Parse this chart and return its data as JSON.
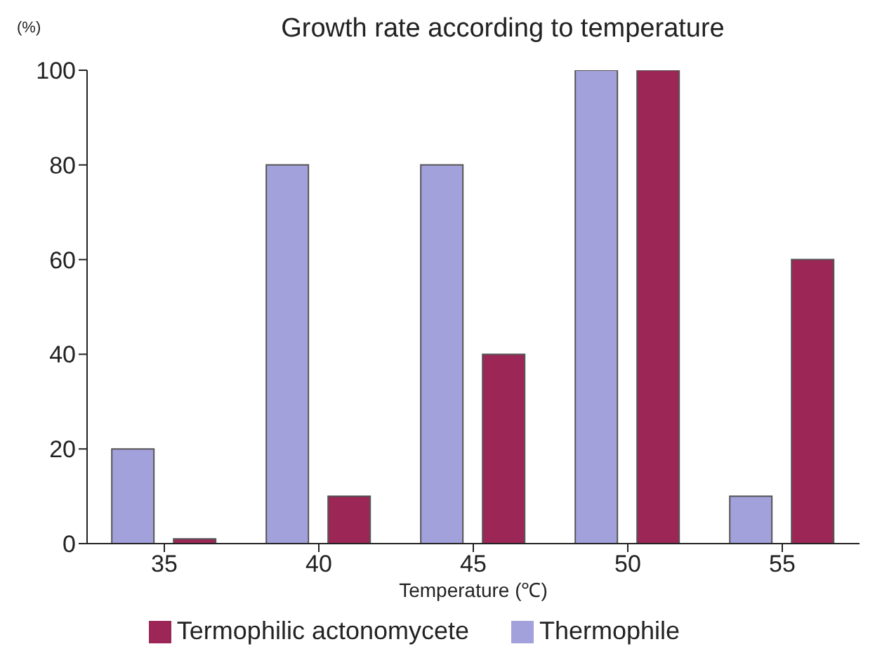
{
  "chart_data": {
    "type": "bar",
    "title": "Growth rate according to temperature",
    "ylabel": "(%)",
    "xlabel": "Temperature (℃)",
    "categories": [
      "35",
      "40",
      "45",
      "50",
      "55"
    ],
    "series": [
      {
        "name": "Thermophile",
        "color": "#a3a1db",
        "values": [
          20,
          80,
          80,
          100,
          10
        ]
      },
      {
        "name": "Termophilic actonomycete",
        "color": "#9c2656",
        "values": [
          1,
          10,
          40,
          100,
          60
        ]
      }
    ],
    "ylim": [
      0,
      100
    ],
    "yticks": [
      0,
      20,
      40,
      60,
      80,
      100
    ],
    "grid": false,
    "legend": "bottom"
  }
}
